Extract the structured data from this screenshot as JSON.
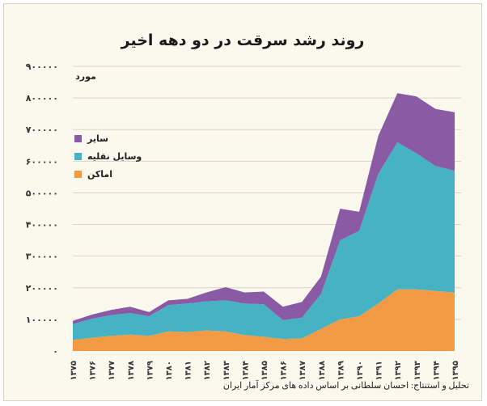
{
  "chart_data": {
    "type": "area",
    "stacked": true,
    "title": "روند رشد سرقت در دو دهه اخیر",
    "ylabel": "مورد",
    "ylim": [
      0,
      900000
    ],
    "y_ticks": [
      "۰",
      "۱۰۰۰۰۰",
      "۲۰۰۰۰۰",
      "۳۰۰۰۰۰",
      "۴۰۰۰۰۰",
      "۵۰۰۰۰۰",
      "۶۰۰۰۰۰",
      "۷۰۰۰۰۰",
      "۸۰۰۰۰۰",
      "۹۰۰۰۰۰"
    ],
    "y_tick_values": [
      0,
      100000,
      200000,
      300000,
      400000,
      500000,
      600000,
      700000,
      800000,
      900000
    ],
    "categories": [
      "۱۳۷۵",
      "۱۳۷۶",
      "۱۳۷۷",
      "۱۳۷۸",
      "۱۳۷۹",
      "۱۳۸۰",
      "۱۳۸۱",
      "۱۳۸۲",
      "۱۳۸۳",
      "۱۳۸۴",
      "۱۳۸۵",
      "۱۳۸۶",
      "۱۳۸۷",
      "۱۳۸۸",
      "۱۳۸۹",
      "۱۳۹۰",
      "۱۳۹۱",
      "۱۳۹۲",
      "۱۳۹۳",
      "۱۳۹۴",
      "۱۳۹۵"
    ],
    "legend_position": "left",
    "series": [
      {
        "name": "اماکن",
        "color": "#f39a45",
        "values": [
          35000,
          42000,
          48000,
          52000,
          48000,
          62000,
          60000,
          65000,
          62000,
          50000,
          45000,
          38000,
          40000,
          70000,
          100000,
          110000,
          150000,
          195000,
          195000,
          190000,
          185000
        ]
      },
      {
        "name": "وسایل نقلیه",
        "color": "#45b3c4",
        "values": [
          50000,
          60000,
          65000,
          68000,
          62000,
          83000,
          90000,
          92000,
          98000,
          100000,
          103000,
          60000,
          65000,
          110000,
          250000,
          270000,
          410000,
          465000,
          430000,
          395000,
          385000
        ]
      },
      {
        "name": "سایر",
        "color": "#8a5aa5",
        "values": [
          10000,
          13000,
          17000,
          20000,
          13000,
          15000,
          15000,
          28000,
          42000,
          35000,
          40000,
          42000,
          50000,
          55000,
          100000,
          60000,
          120000,
          155000,
          180000,
          180000,
          185000
        ]
      }
    ],
    "source_note": "تحلیل و استنتاج: احسان سلطانی بر اساس داده های مرکز آمار ایران"
  }
}
